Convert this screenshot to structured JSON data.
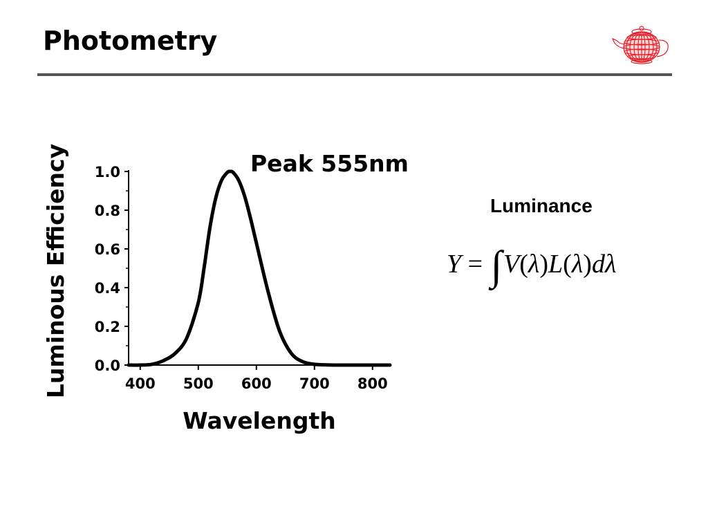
{
  "slide": {
    "title": "Photometry"
  },
  "luminance": {
    "label": "Luminance",
    "formula": {
      "lhs": "Y",
      "eq": "=",
      "integral": "∫",
      "rhs_V": "V",
      "lparen1": "(",
      "lambda1": "λ",
      "rparen1": ")",
      "rhs_L": "L",
      "lparen2": "(",
      "lambda2": "λ",
      "rparen2": ")",
      "d": "d",
      "lambda3": "λ"
    }
  },
  "logo": {
    "icon": "teapot-wireframe-icon",
    "color": "#e8202a"
  },
  "chart_data": {
    "type": "line",
    "annotation": "Peak 555nm",
    "xlabel": "Wavelength",
    "ylabel": "Luminous Efficiency",
    "xlim": [
      380,
      830
    ],
    "ylim": [
      0,
      1.0
    ],
    "xticks": [
      "400",
      "500",
      "600",
      "700",
      "800"
    ],
    "xtick_values": [
      400,
      500,
      600,
      700,
      800
    ],
    "yticks": [
      "1.0",
      "0.8",
      "0.6",
      "0.4",
      "0.2",
      "0.0"
    ],
    "ytick_values": [
      1.0,
      0.8,
      0.6,
      0.4,
      0.2,
      0.0
    ],
    "grid": false,
    "series": [
      {
        "x": [
          380,
          400,
          420,
          440,
          460,
          480,
          500,
          510,
          520,
          530,
          540,
          550,
          555,
          560,
          570,
          580,
          590,
          600,
          620,
          640,
          660,
          680,
          700,
          720,
          750,
          800,
          830
        ],
        "y": [
          0.0,
          0.0,
          0.004,
          0.023,
          0.06,
          0.139,
          0.323,
          0.503,
          0.71,
          0.862,
          0.954,
          0.995,
          1.0,
          0.995,
          0.952,
          0.87,
          0.757,
          0.631,
          0.381,
          0.175,
          0.061,
          0.017,
          0.004,
          0.001,
          0.0,
          0.0,
          0.0
        ],
        "color": "#000000"
      }
    ]
  }
}
